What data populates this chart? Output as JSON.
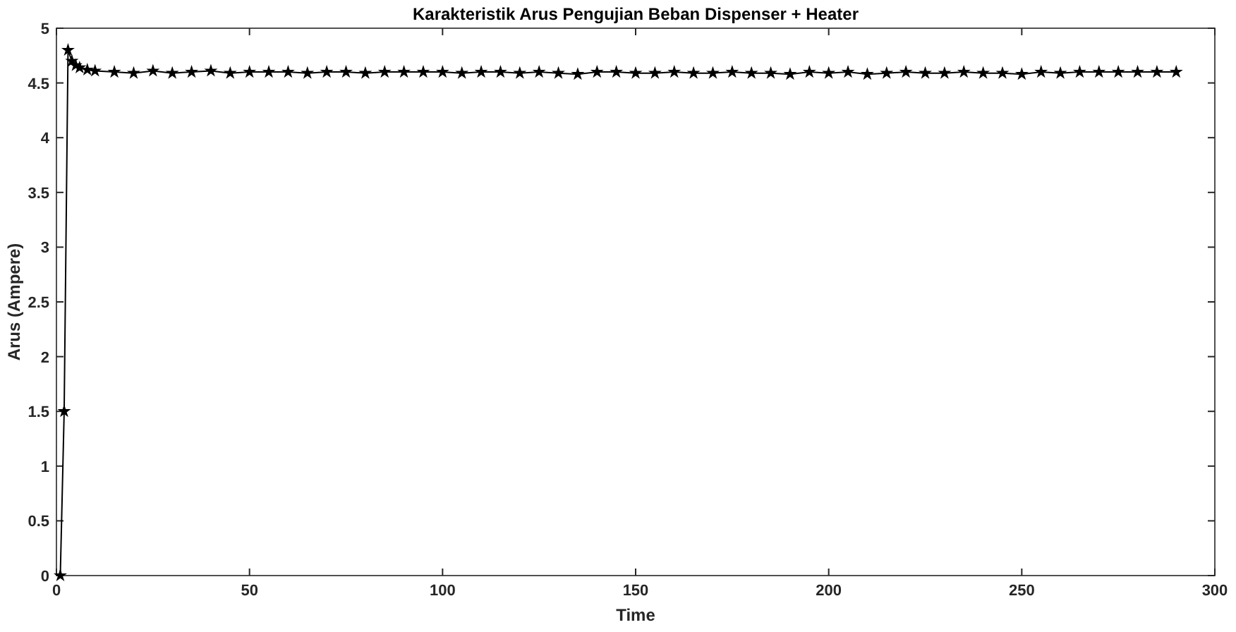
{
  "chart_data": {
    "type": "line",
    "title": "Karakteristik Arus Pengujian Beban Dispenser + Heater",
    "xlabel": "Time",
    "ylabel": "Arus (Ampere)",
    "xlim": [
      0,
      300
    ],
    "xticks": [
      0,
      50,
      100,
      150,
      200,
      250,
      300
    ],
    "ylim": [
      0,
      5
    ],
    "yticks": [
      0,
      0.5,
      1,
      1.5,
      2,
      2.5,
      3,
      3.5,
      4,
      4.5,
      5
    ],
    "grid": false,
    "marker": "star",
    "line_style": "solid",
    "series": [
      {
        "color": "#000000",
        "x": [
          1,
          2,
          3,
          4,
          5,
          6,
          8,
          10,
          15,
          20,
          25,
          30,
          35,
          40,
          45,
          50,
          55,
          60,
          65,
          70,
          75,
          80,
          85,
          90,
          95,
          100,
          105,
          110,
          115,
          120,
          125,
          130,
          135,
          140,
          145,
          150,
          155,
          160,
          165,
          170,
          175,
          180,
          185,
          190,
          195,
          200,
          205,
          210,
          215,
          220,
          225,
          230,
          235,
          240,
          245,
          250,
          255,
          260,
          265,
          270,
          275,
          280,
          285,
          290
        ],
        "values": [
          0,
          1.5,
          4.8,
          4.7,
          4.66,
          4.64,
          4.62,
          4.61,
          4.6,
          4.59,
          4.61,
          4.59,
          4.6,
          4.61,
          4.59,
          4.6,
          4.6,
          4.6,
          4.59,
          4.6,
          4.6,
          4.59,
          4.6,
          4.6,
          4.6,
          4.6,
          4.59,
          4.6,
          4.6,
          4.59,
          4.6,
          4.59,
          4.58,
          4.6,
          4.6,
          4.59,
          4.59,
          4.6,
          4.59,
          4.59,
          4.6,
          4.59,
          4.59,
          4.58,
          4.6,
          4.59,
          4.6,
          4.58,
          4.59,
          4.6,
          4.59,
          4.59,
          4.6,
          4.59,
          4.59,
          4.58,
          4.6,
          4.59,
          4.6,
          4.6,
          4.6,
          4.6,
          4.6,
          4.6
        ]
      }
    ]
  }
}
